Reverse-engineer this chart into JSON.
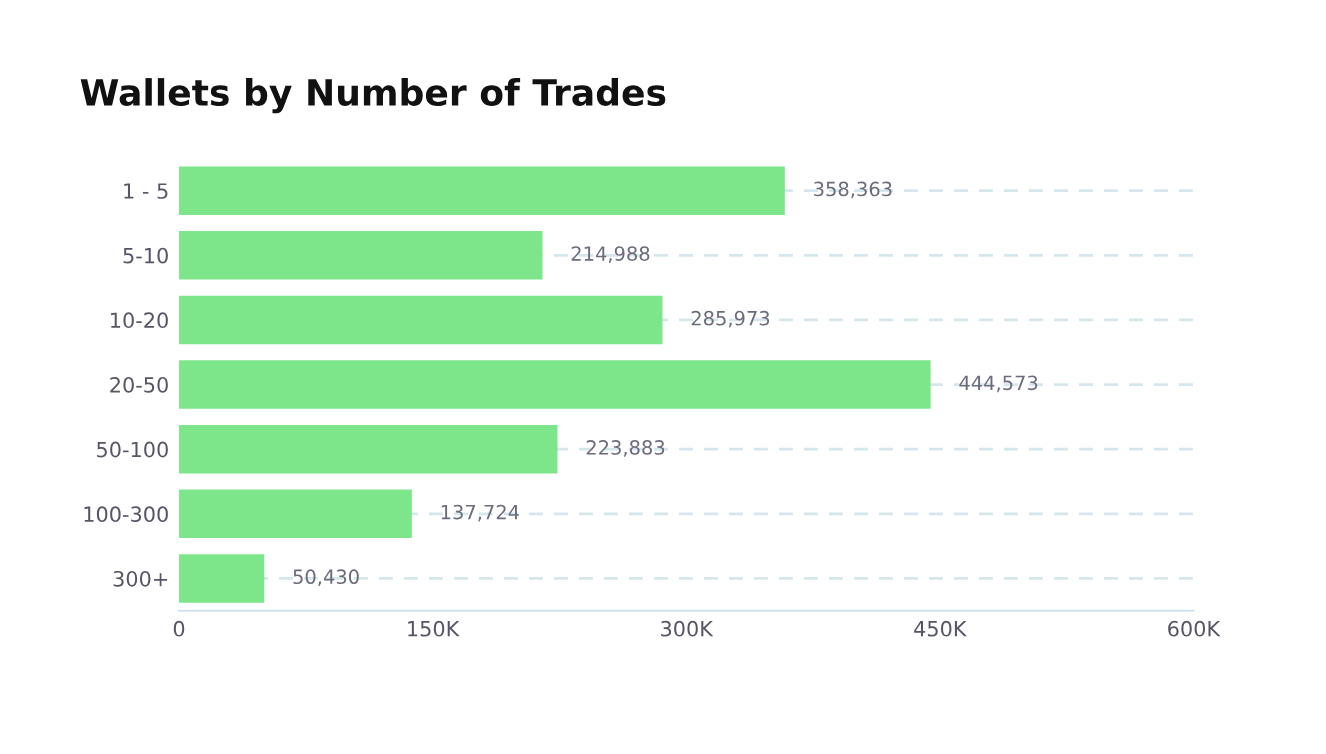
{
  "chart_data": {
    "type": "bar",
    "orientation": "horizontal",
    "title": "Wallets by Number of Trades",
    "categories": [
      "1 - 5",
      "5-10",
      "10-20",
      "20-50",
      "50-100",
      "100-300",
      "300+"
    ],
    "values": [
      358363,
      214988,
      285973,
      444573,
      223883,
      137724,
      50430
    ],
    "color": "#7ee68a",
    "xlim": [
      0,
      600000
    ],
    "xticks": [
      0,
      {
        "value": 150000,
        "label": "150K"
      },
      {
        "value": 300000,
        "label": "300K"
      },
      {
        "value": 450000,
        "label": "450K"
      },
      {
        "value": 600000,
        "label": "600K"
      }
    ],
    "value_labels": [
      "358,363",
      "214,988",
      "285,973",
      "444,573",
      "223,883",
      "137,724",
      "50,430"
    ],
    "grid": "y"
  }
}
